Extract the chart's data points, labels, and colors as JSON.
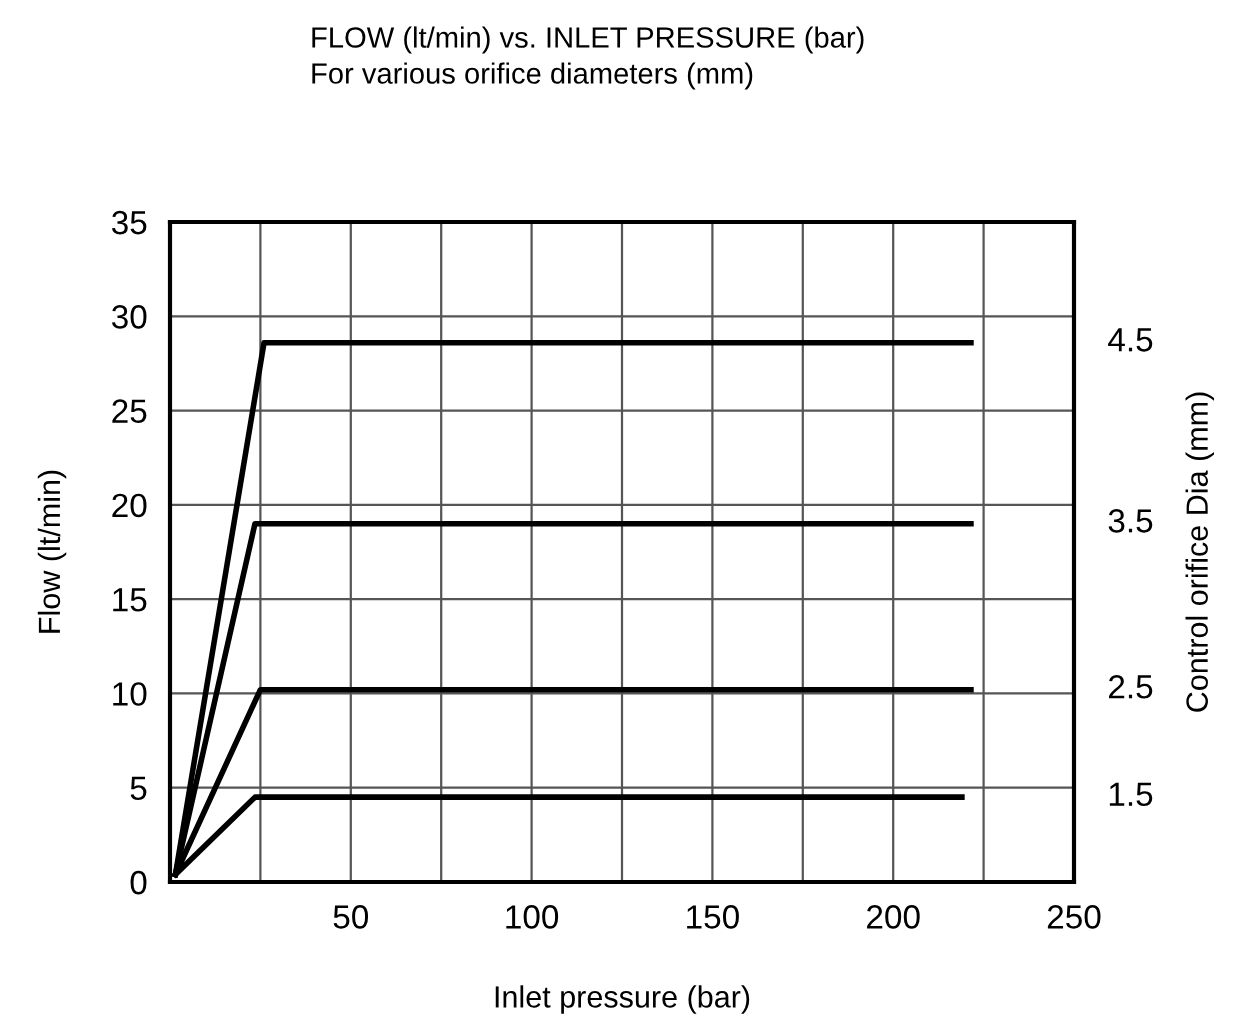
{
  "chart_data": {
    "type": "line",
    "title": "FLOW (lt/min) vs. INLET PRESSURE (bar)",
    "subtitle": "For various orifice diameters (mm)",
    "xlabel": "Inlet pressure (bar)",
    "ylabel": "Flow (lt/min)",
    "y2label": "Control orifice Dia (mm)",
    "series": [
      {
        "name": "4.5",
        "color": "#000000",
        "x": [
          1.5,
          26,
          221.5
        ],
        "values": [
          0.4,
          28.6,
          28.6
        ]
      },
      {
        "name": "3.5",
        "color": "#000000",
        "x": [
          1.5,
          23.5,
          221.5
        ],
        "values": [
          0.4,
          19.0,
          19.0
        ]
      },
      {
        "name": "2.5",
        "color": "#000000",
        "x": [
          1.5,
          25,
          221.5
        ],
        "values": [
          0.4,
          10.2,
          10.2
        ]
      },
      {
        "name": "1.5",
        "color": "#000000",
        "x": [
          1.5,
          23.5,
          219
        ],
        "values": [
          0.4,
          4.5,
          4.5
        ]
      }
    ],
    "xlim": [
      0,
      250
    ],
    "xticks": [
      {
        "value": 25,
        "label": null
      },
      50,
      {
        "value": 75,
        "label": null
      },
      100,
      {
        "value": 125,
        "label": null
      },
      150,
      {
        "value": 175,
        "label": null
      },
      200,
      {
        "value": 225,
        "label": null
      },
      250
    ],
    "ylim": [
      0,
      35
    ],
    "yticks": [
      0,
      5,
      10,
      15,
      20,
      25,
      30,
      35
    ],
    "grid": true,
    "line_style": "solid",
    "marker": "none"
  }
}
